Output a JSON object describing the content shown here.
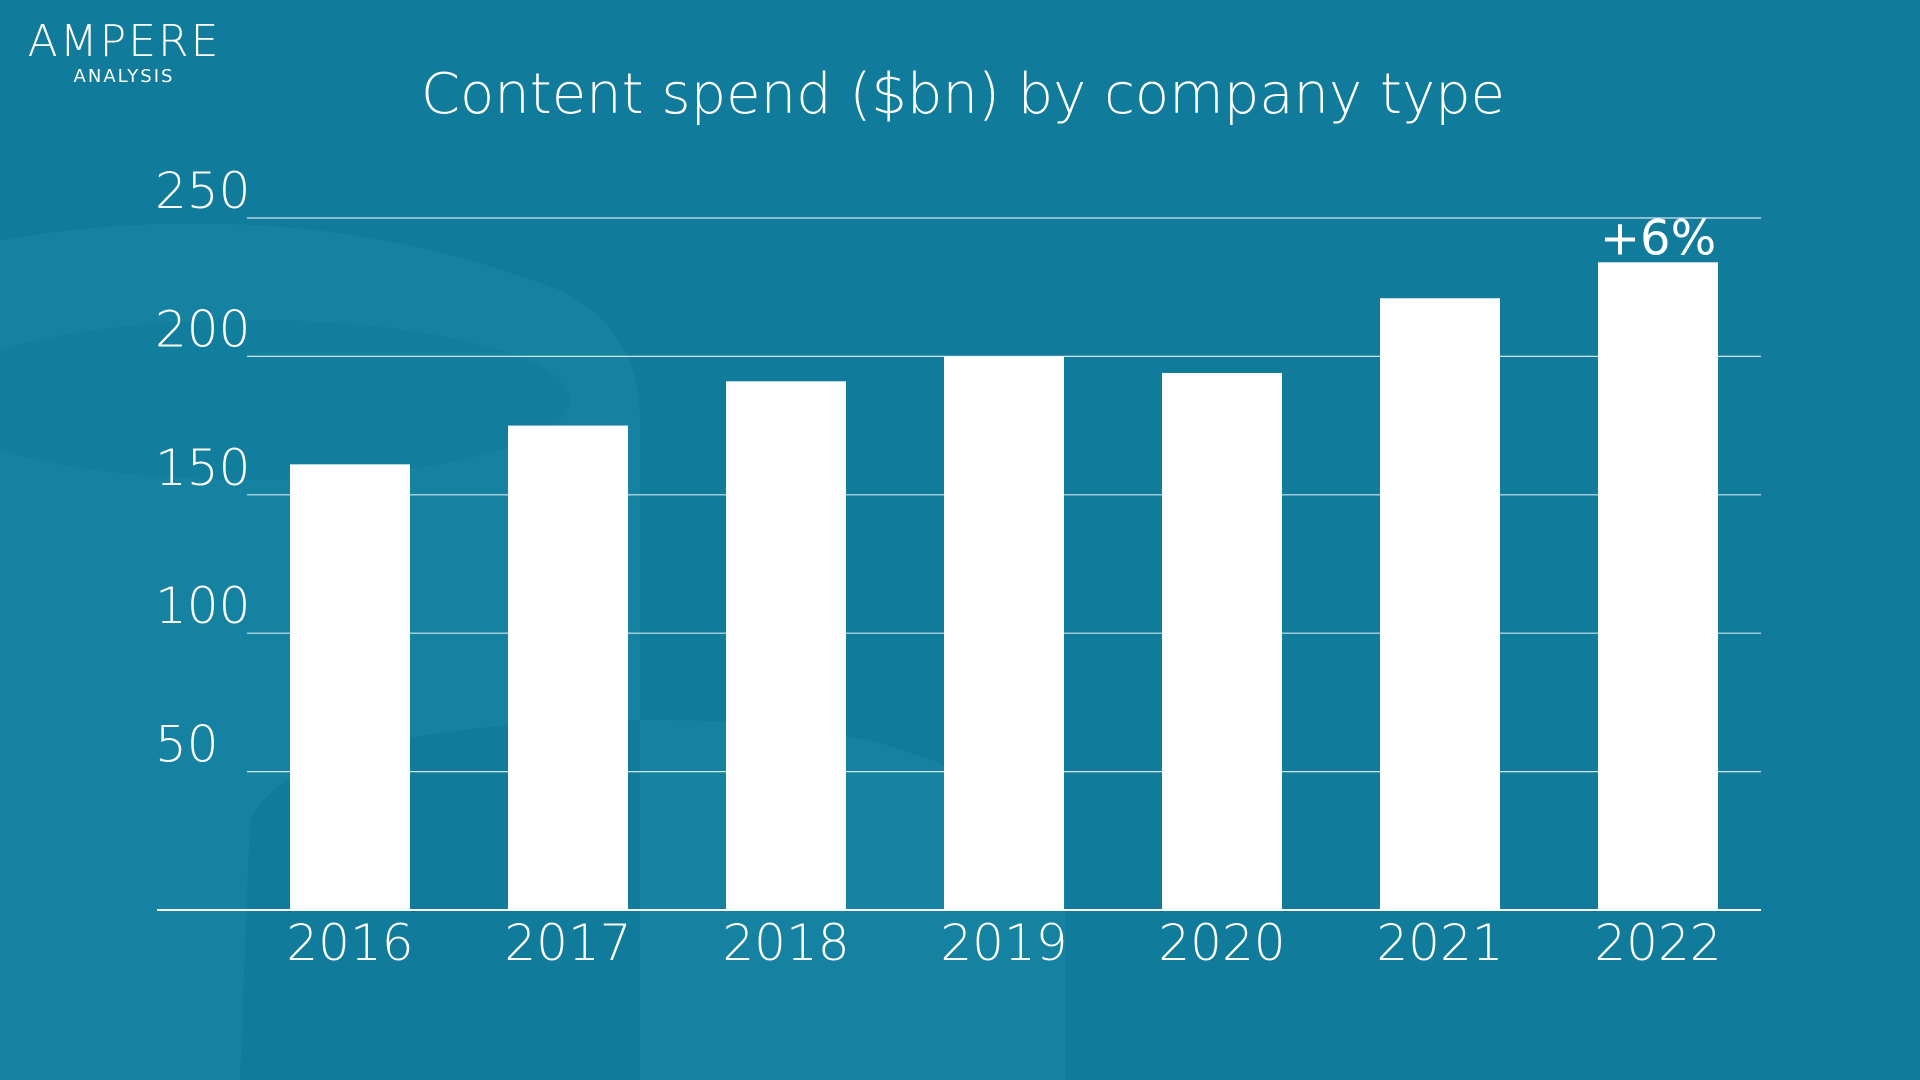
{
  "brand": {
    "name": "AMPERE",
    "sub": "ANALYSIS"
  },
  "colors": {
    "background": "#107b9b",
    "bar": "#ffffff",
    "decor": "#1a88a6"
  },
  "chart_data": {
    "type": "bar",
    "title": "Content spend ($bn) by company type",
    "categories": [
      "2016",
      "2017",
      "2018",
      "2019",
      "2020",
      "2021",
      "2022"
    ],
    "values": [
      161,
      175,
      191,
      200,
      194,
      221,
      234
    ],
    "xlabel": "",
    "ylabel": "",
    "ylim": [
      0,
      250
    ],
    "yticks": [
      50,
      100,
      150,
      200,
      250
    ],
    "grid": true,
    "annotations": [
      {
        "category": "2022",
        "text": "+6%"
      }
    ]
  }
}
